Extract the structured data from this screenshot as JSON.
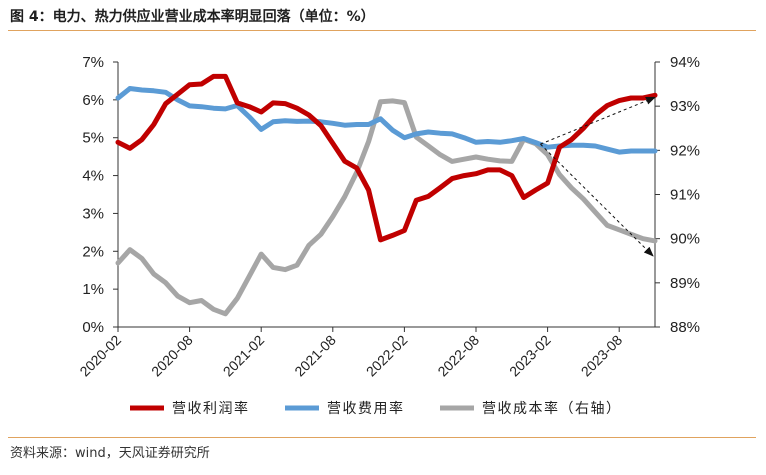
{
  "header": {
    "title": "图 4：电力、热力供应业营业成本率明显回落（单位：%）"
  },
  "footer": {
    "source": "资料来源：wind，天风证券研究所"
  },
  "chart_data": {
    "type": "line",
    "x": [
      "2020-02",
      "2020-03",
      "2020-04",
      "2020-05",
      "2020-06",
      "2020-07",
      "2020-08",
      "2020-09",
      "2020-10",
      "2020-11",
      "2020-12",
      "2021-01",
      "2021-02",
      "2021-03",
      "2021-04",
      "2021-05",
      "2021-06",
      "2021-07",
      "2021-08",
      "2021-09",
      "2021-10",
      "2021-11",
      "2021-12",
      "2022-01",
      "2022-02",
      "2022-03",
      "2022-04",
      "2022-05",
      "2022-06",
      "2022-07",
      "2022-08",
      "2022-09",
      "2022-10",
      "2022-11",
      "2022-12",
      "2023-01",
      "2023-02",
      "2023-03",
      "2023-04",
      "2023-05",
      "2023-06",
      "2023-07",
      "2023-08",
      "2023-09",
      "2023-10",
      "2023-11"
    ],
    "x_tick_labels": [
      "2020-02",
      "2020-08",
      "2021-02",
      "2021-08",
      "2022-02",
      "2022-08",
      "2023-02",
      "2023-08"
    ],
    "y_left": {
      "ticks": [
        "0%",
        "1%",
        "2%",
        "3%",
        "4%",
        "5%",
        "6%",
        "7%"
      ],
      "ylim": [
        0,
        7
      ]
    },
    "y_right": {
      "ticks": [
        "88%",
        "89%",
        "90%",
        "91%",
        "92%",
        "93%",
        "94%"
      ],
      "ylim": [
        88,
        94
      ]
    },
    "series": [
      {
        "name": "营收利润率",
        "axis": "left",
        "color": "#c00000",
        "values": [
          4.88,
          4.72,
          4.95,
          5.35,
          5.9,
          6.15,
          6.4,
          6.42,
          6.62,
          6.62,
          5.92,
          5.82,
          5.68,
          5.92,
          5.9,
          5.78,
          5.6,
          5.32,
          4.85,
          4.38,
          4.2,
          3.62,
          2.3,
          2.42,
          2.55,
          3.35,
          3.45,
          3.68,
          3.92,
          4.0,
          4.05,
          4.15,
          4.15,
          4.0,
          3.42,
          3.62,
          3.8,
          4.75,
          4.95,
          5.25,
          5.6,
          5.85,
          5.98,
          6.05,
          6.05,
          6.12
        ]
      },
      {
        "name": "营收费用率",
        "axis": "left",
        "color": "#5b9bd5",
        "values": [
          6.05,
          6.3,
          6.26,
          6.24,
          6.2,
          6.0,
          5.84,
          5.82,
          5.78,
          5.76,
          5.85,
          5.55,
          5.22,
          5.42,
          5.45,
          5.43,
          5.44,
          5.42,
          5.38,
          5.33,
          5.35,
          5.35,
          5.5,
          5.2,
          5.0,
          5.1,
          5.15,
          5.12,
          5.1,
          5.0,
          4.88,
          4.9,
          4.88,
          4.92,
          4.98,
          4.87,
          4.75,
          4.78,
          4.8,
          4.8,
          4.78,
          4.7,
          4.62,
          4.65,
          4.65,
          4.65
        ]
      },
      {
        "name": "营收成本率（右轴）",
        "axis": "right",
        "color": "#a6a6a6",
        "values": [
          89.45,
          89.75,
          89.55,
          89.2,
          89.0,
          88.7,
          88.55,
          88.6,
          88.4,
          88.3,
          88.65,
          89.15,
          89.65,
          89.35,
          89.3,
          89.4,
          89.85,
          90.1,
          90.5,
          90.95,
          91.5,
          92.2,
          93.1,
          93.12,
          93.08,
          92.3,
          92.1,
          91.9,
          91.75,
          91.8,
          91.85,
          91.8,
          91.76,
          91.75,
          92.25,
          92.15,
          91.9,
          91.45,
          91.15,
          90.9,
          90.6,
          90.3,
          90.2,
          90.1,
          90.0,
          89.95
        ]
      }
    ],
    "annotations": [
      "arrow-up-profit",
      "arrow-down-cost"
    ],
    "legend_position": "bottom",
    "grid": false
  }
}
